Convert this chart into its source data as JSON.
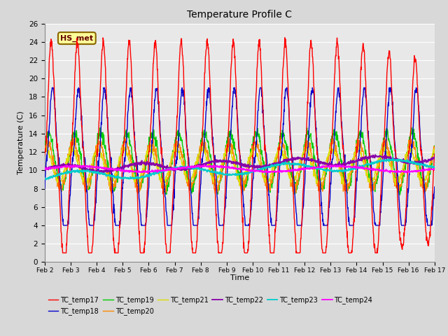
{
  "title": "Temperature Profile C",
  "xlabel": "Time",
  "ylabel": "Temperature (C)",
  "ylim": [
    0,
    26
  ],
  "yticks": [
    0,
    2,
    4,
    6,
    8,
    10,
    12,
    14,
    16,
    18,
    20,
    22,
    24,
    26
  ],
  "xtick_labels": [
    "Feb 2",
    "Feb 3",
    "Feb 4",
    "Feb 5",
    "Feb 6",
    "Feb 7",
    "Feb 8",
    "Feb 9",
    "Feb 10",
    "Feb 11",
    "Feb 12",
    "Feb 13",
    "Feb 14",
    "Feb 15",
    "Feb 16",
    "Feb 17"
  ],
  "annotation_text": "HS_met",
  "series_colors": {
    "TC_temp17": "#FF0000",
    "TC_temp18": "#0000CC",
    "TC_temp19": "#00CC00",
    "TC_temp20": "#FF8800",
    "TC_temp21": "#DDDD00",
    "TC_temp22": "#8800AA",
    "TC_temp23": "#00CCCC",
    "TC_temp24": "#FF00FF"
  },
  "background_color": "#E8E8E8",
  "grid_color": "#FFFFFF",
  "n_points": 1440,
  "figsize": [
    6.4,
    4.8
  ],
  "dpi": 100
}
